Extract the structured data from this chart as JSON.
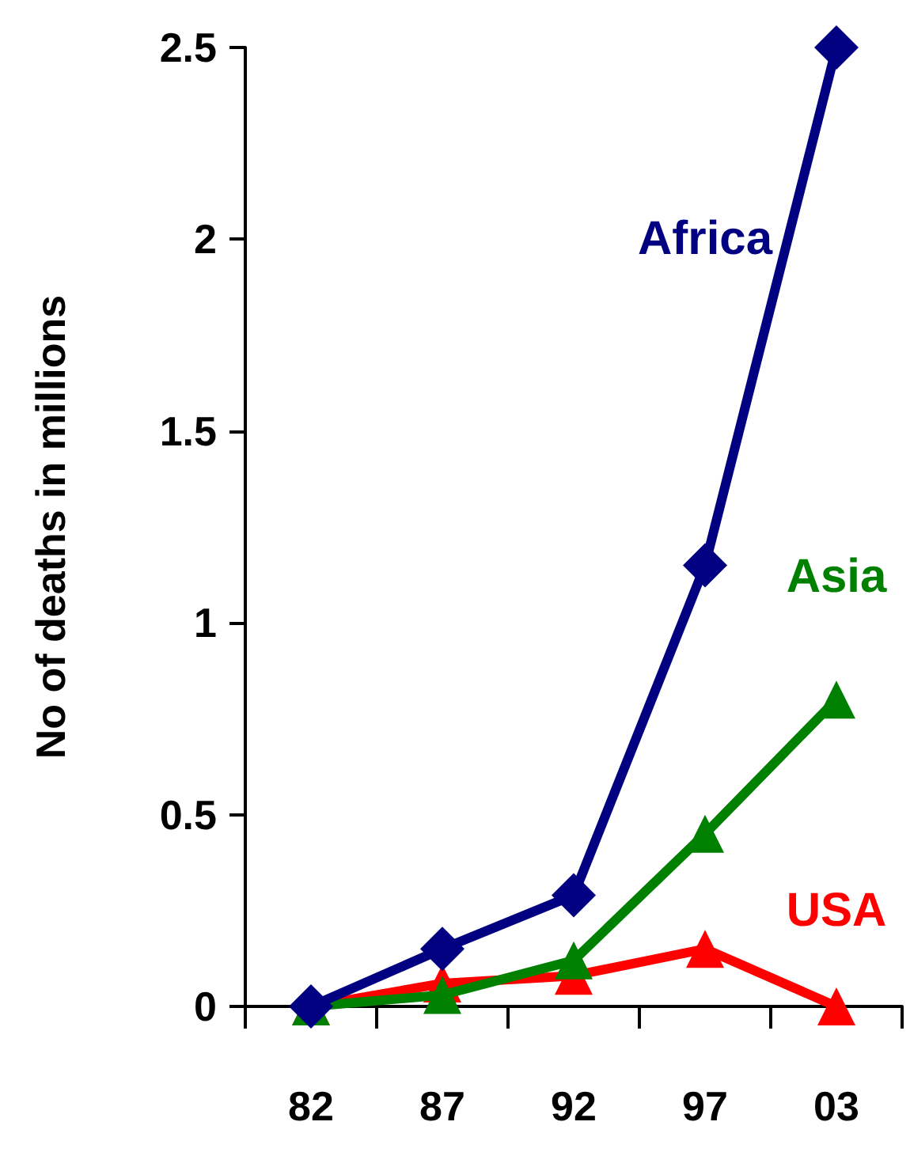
{
  "chart_data": {
    "type": "line",
    "ylabel": "No of deaths in millions",
    "categories": [
      "82",
      "87",
      "92",
      "97",
      "03"
    ],
    "series": [
      {
        "name": "Africa",
        "color": "#000080",
        "marker": "diamond",
        "values": [
          0,
          0.15,
          0.29,
          1.15,
          2.5
        ]
      },
      {
        "name": "Asia",
        "color": "#008000",
        "marker": "triangle",
        "values": [
          0,
          0.03,
          0.12,
          0.45,
          0.8
        ]
      },
      {
        "name": "USA",
        "color": "#ff0000",
        "marker": "triangle",
        "values": [
          0,
          0.06,
          0.08,
          0.15,
          0
        ]
      }
    ],
    "ylim": [
      0,
      2.5
    ],
    "yticks": [
      0,
      0.5,
      1,
      1.5,
      2,
      2.5
    ],
    "grid": false,
    "legend": false
  }
}
